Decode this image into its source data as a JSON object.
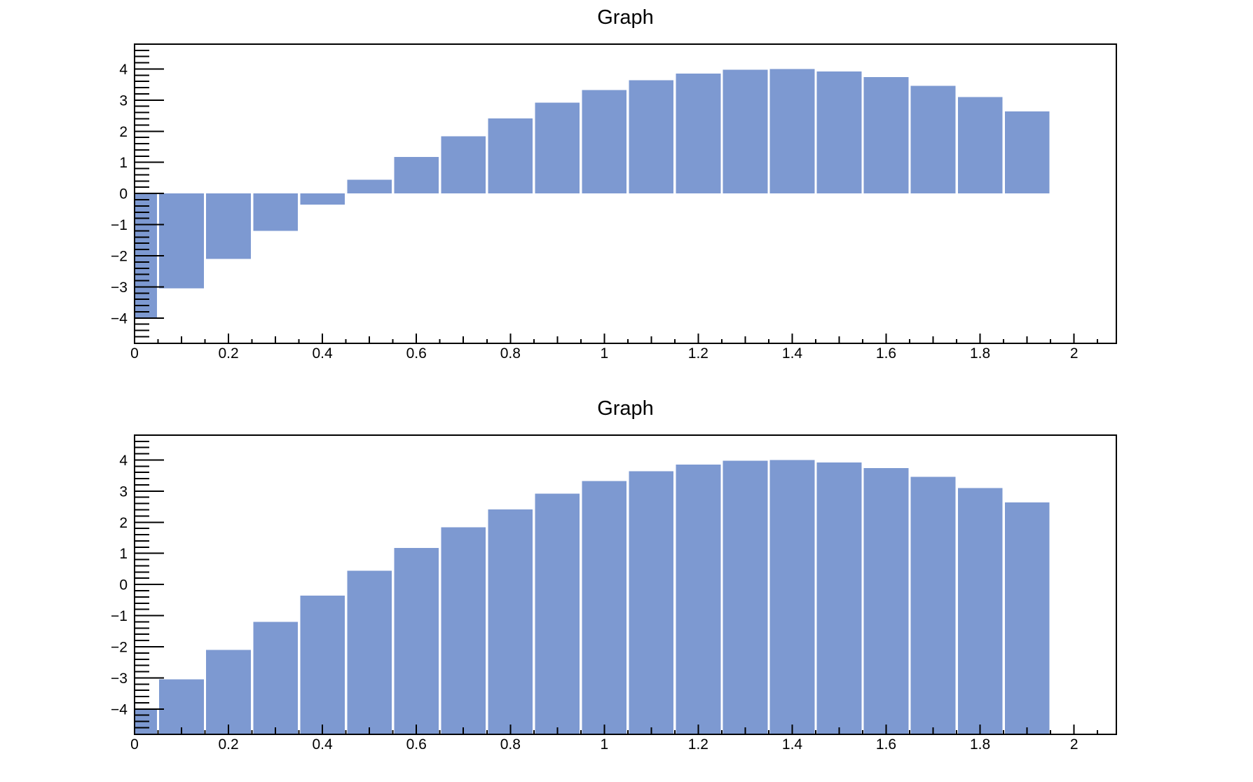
{
  "canvas": {
    "background": "#ffffff",
    "frame_border_color": "#000000",
    "text_color": "#000000"
  },
  "chart_data": [
    {
      "type": "bar",
      "title": "Graph",
      "bar_baseline": "zero",
      "x": [
        0,
        0.1,
        0.2,
        0.3,
        0.4,
        0.5,
        0.6,
        0.7,
        0.8,
        0.9,
        1.0,
        1.1,
        1.2,
        1.3,
        1.4,
        1.5,
        1.6,
        1.7,
        1.8,
        1.9
      ],
      "values": [
        -4.013,
        -3.045,
        -2.106,
        -1.206,
        -0.354,
        0.442,
        1.174,
        1.833,
        2.415,
        2.912,
        3.32,
        3.636,
        3.854,
        3.975,
        3.996,
        3.917,
        3.738,
        3.463,
        3.093,
        2.632
      ],
      "bar_color": "#7d99d1",
      "xlabel": "",
      "ylabel": "",
      "xlim": [
        0,
        2.09
      ],
      "ylim": [
        -4.814,
        4.797
      ],
      "x_major_ticks": [
        0,
        0.2,
        0.4,
        0.6,
        0.8,
        1,
        1.2,
        1.4,
        1.6,
        1.8,
        2
      ],
      "x_tick_labels": [
        "0",
        "0.2",
        "0.4",
        "0.6",
        "0.8",
        "1",
        "1.2",
        "1.4",
        "1.6",
        "1.8",
        "2"
      ],
      "x_minor_tick_step": 0.05,
      "y_major_ticks": [
        -4,
        -3,
        -2,
        -1,
        0,
        1,
        2,
        3,
        4
      ],
      "y_tick_labels": [
        "−4",
        "−3",
        "−2",
        "−1",
        "0",
        "1",
        "2",
        "3",
        "4"
      ],
      "y_minor_tick_step": 0.2,
      "grid": false,
      "legend": false
    },
    {
      "type": "bar",
      "title": "Graph",
      "bar_baseline": "frame_bottom",
      "x": [
        0,
        0.1,
        0.2,
        0.3,
        0.4,
        0.5,
        0.6,
        0.7,
        0.8,
        0.9,
        1.0,
        1.1,
        1.2,
        1.3,
        1.4,
        1.5,
        1.6,
        1.7,
        1.8,
        1.9
      ],
      "values": [
        -4.013,
        -3.045,
        -2.106,
        -1.206,
        -0.354,
        0.442,
        1.174,
        1.833,
        2.415,
        2.912,
        3.32,
        3.636,
        3.854,
        3.975,
        3.996,
        3.917,
        3.738,
        3.463,
        3.093,
        2.632
      ],
      "bar_color": "#7d99d1",
      "xlabel": "",
      "ylabel": "",
      "xlim": [
        0,
        2.09
      ],
      "ylim": [
        -4.814,
        4.797
      ],
      "x_major_ticks": [
        0,
        0.2,
        0.4,
        0.6,
        0.8,
        1,
        1.2,
        1.4,
        1.6,
        1.8,
        2
      ],
      "x_tick_labels": [
        "0",
        "0.2",
        "0.4",
        "0.6",
        "0.8",
        "1",
        "1.2",
        "1.4",
        "1.6",
        "1.8",
        "2"
      ],
      "x_minor_tick_step": 0.05,
      "y_major_ticks": [
        -4,
        -3,
        -2,
        -1,
        0,
        1,
        2,
        3,
        4
      ],
      "y_tick_labels": [
        "−4",
        "−3",
        "−2",
        "−1",
        "0",
        "1",
        "2",
        "3",
        "4"
      ],
      "y_minor_tick_step": 0.2,
      "grid": false,
      "legend": false
    }
  ]
}
